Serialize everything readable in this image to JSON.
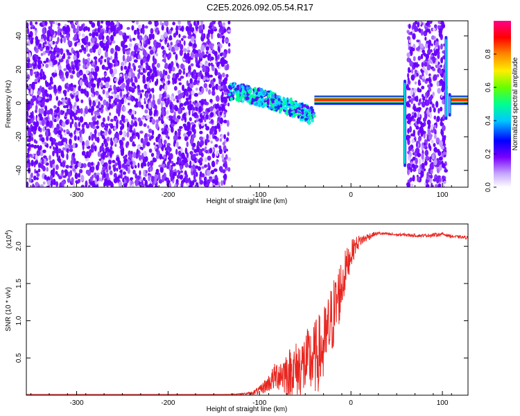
{
  "title": "C2E5.2026.092.05.54.R17",
  "chart_data": [
    {
      "type": "heatmap",
      "xlabel": "Height of straight line (km)",
      "ylabel": "Frequency (Hz)",
      "xlim": [
        -355,
        128
      ],
      "ylim": [
        -50,
        49
      ],
      "x_ticks": [
        -300,
        -200,
        -100,
        0,
        100
      ],
      "y_ticks": [
        -40,
        -20,
        0,
        20,
        40
      ],
      "colorbar": {
        "label": "Normalized spectral amplitude",
        "range": [
          0,
          1
        ],
        "ticks": [
          0.0,
          0.2,
          0.4,
          0.6,
          0.8
        ],
        "tick_labels": [
          "0.0",
          "0.2",
          "0.4",
          "0.6",
          "0.8"
        ],
        "colors": [
          "#ffffff",
          "#b388ff",
          "#7a00ff",
          "#0000ff",
          "#00c8ff",
          "#00ff90",
          "#66ff00",
          "#ffee00",
          "#ff8800",
          "#ff0000",
          "#ff0088"
        ]
      },
      "regions": [
        {
          "name": "noise",
          "x": [
            -355,
            -133
          ],
          "freq": [
            -50,
            49
          ],
          "level": 0.2
        },
        {
          "name": "signal-scatter",
          "x": [
            -133,
            -40
          ],
          "freq_center": [
            8,
            -12
          ],
          "spread": 6,
          "level": 0.45
        },
        {
          "name": "carrier-line",
          "x": [
            -40,
            58
          ],
          "freq": 2,
          "level": 0.9
        },
        {
          "name": "noise-band",
          "x": [
            62,
            104
          ],
          "freq": [
            -50,
            49
          ],
          "level": 0.2
        },
        {
          "name": "carrier-line-2",
          "x": [
            108,
            128
          ],
          "freq": 2,
          "level": 0.9
        }
      ]
    },
    {
      "type": "line",
      "xlabel": "Height of straight line (km)",
      "ylabel": "SNR (10 * v/v)",
      "y_multiplier": "(x10",
      "y_multiplier_exp": "4",
      "y_multiplier_close": ")",
      "xlim": [
        -355,
        128
      ],
      "ylim": [
        0,
        2.3
      ],
      "x_ticks": [
        -300,
        -200,
        -100,
        0,
        100
      ],
      "y_ticks": [
        0.5,
        1.0,
        1.5,
        2.0
      ],
      "y_tick_labels": [
        "0.5",
        "1.0",
        "1.5",
        "2.0"
      ],
      "series": [
        {
          "name": "SNR",
          "color": "#e8251f",
          "x": [
            -355,
            -300,
            -200,
            -140,
            -120,
            -110,
            -100,
            -90,
            -80,
            -70,
            -60,
            -50,
            -40,
            -30,
            -25,
            -20,
            -15,
            -10,
            -5,
            0,
            5,
            10,
            15,
            20,
            25,
            30,
            40,
            50,
            60,
            70,
            80,
            90,
            100,
            110,
            120,
            128
          ],
          "y": [
            0.01,
            0.01,
            0.01,
            0.01,
            0.02,
            0.03,
            0.08,
            0.2,
            0.35,
            0.4,
            0.45,
            0.55,
            0.65,
            0.8,
            1.0,
            1.2,
            1.4,
            1.6,
            1.8,
            1.95,
            2.05,
            2.1,
            2.12,
            2.15,
            2.17,
            2.18,
            2.17,
            2.16,
            2.16,
            2.15,
            2.15,
            2.16,
            2.17,
            2.14,
            2.13,
            2.12
          ],
          "noise": [
            0,
            0,
            0,
            0,
            0.01,
            0.02,
            0.06,
            0.12,
            0.22,
            0.32,
            0.4,
            0.45,
            0.5,
            0.55,
            0.5,
            0.5,
            0.45,
            0.4,
            0.25,
            0.18,
            0.12,
            0.08,
            0.06,
            0.05,
            0.03,
            0.02,
            0.02,
            0.02,
            0.02,
            0.02,
            0.02,
            0.03,
            0.02,
            0.02,
            0.02,
            0.02
          ]
        }
      ]
    }
  ]
}
